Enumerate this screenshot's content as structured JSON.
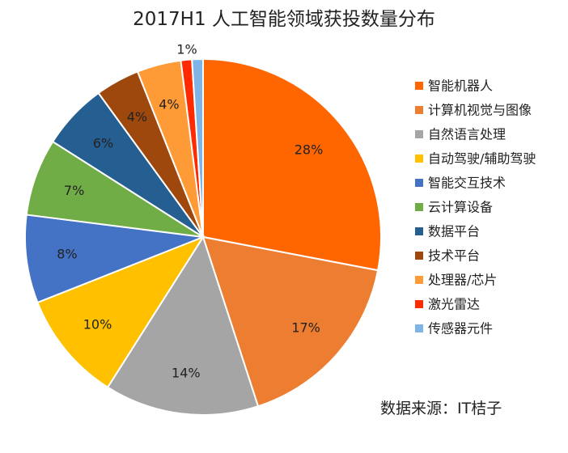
{
  "chart_data": {
    "type": "pie",
    "title": "2017H1 人工智能领域获投数量分布",
    "categories": [
      "智能机器人",
      "计算机视觉与图像",
      "自然语言处理",
      "自动驾驶/辅助驾驶",
      "智能交互技术",
      "云计算设备",
      "数据平台",
      "技术平台",
      "处理器/芯片",
      "激光雷达",
      "传感器元件"
    ],
    "values": [
      28,
      17,
      14,
      10,
      8,
      7,
      6,
      4,
      4,
      1,
      1
    ],
    "labels": [
      "28%",
      "17%",
      "14%",
      "10%",
      "8%",
      "7%",
      "6%",
      "4%",
      "4%",
      "",
      "1%"
    ],
    "colors": [
      "#ff6600",
      "#ed7d31",
      "#a5a5a5",
      "#ffc000",
      "#4472c4",
      "#70ad47",
      "#255e91",
      "#9e480e",
      "#ff9b37",
      "#ff2a00",
      "#7fb4e6"
    ],
    "legend_position": "right"
  },
  "source_text": "数据来源：IT桔子"
}
